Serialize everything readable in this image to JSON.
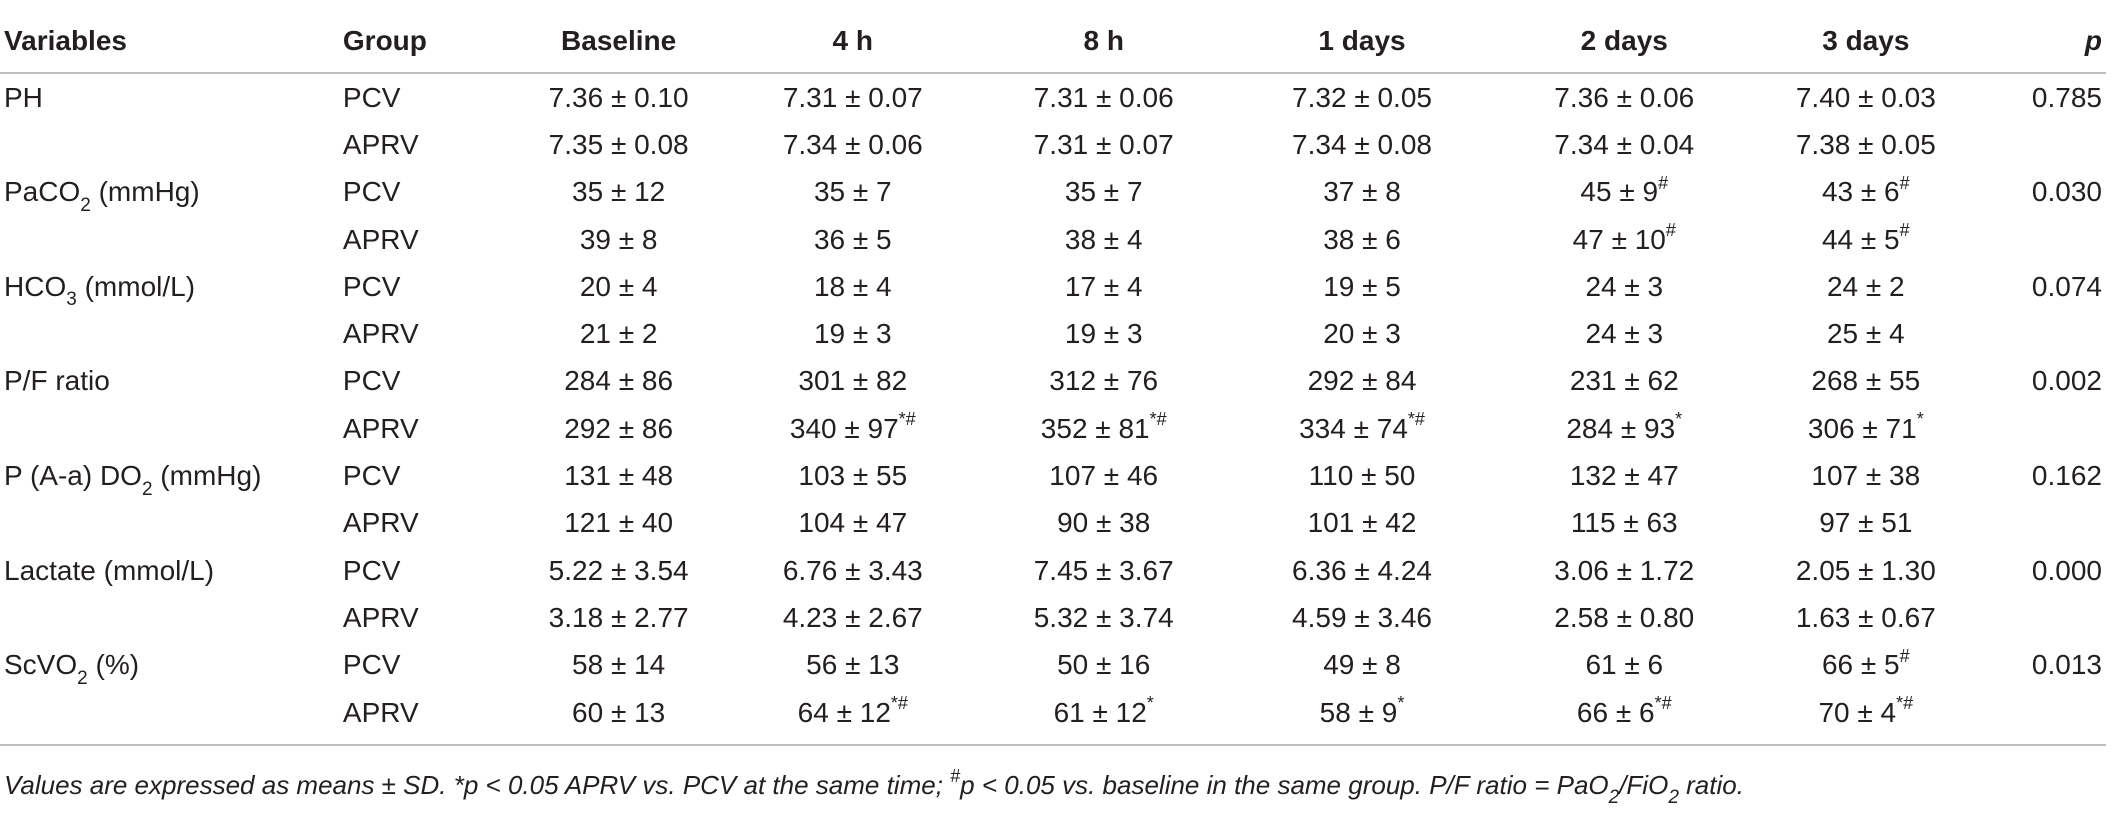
{
  "table": {
    "headers": [
      "Variables",
      "Group",
      "Baseline",
      "4 h",
      "8 h",
      "1 days",
      "2 days",
      "3 days",
      "p"
    ],
    "rows": [
      {
        "variable": "PH",
        "group": "PCV",
        "values": [
          [
            "7.36 ± 0.10",
            ""
          ],
          [
            "7.31 ± 0.07",
            ""
          ],
          [
            "7.31 ± 0.06",
            ""
          ],
          [
            "7.32 ± 0.05",
            ""
          ],
          [
            "7.36 ± 0.06",
            ""
          ],
          [
            "7.40 ± 0.03",
            ""
          ]
        ],
        "p": "0.785"
      },
      {
        "variable": "",
        "group": "APRV",
        "values": [
          [
            "7.35 ± 0.08",
            ""
          ],
          [
            "7.34 ± 0.06",
            ""
          ],
          [
            "7.31 ± 0.07",
            ""
          ],
          [
            "7.34 ± 0.08",
            ""
          ],
          [
            "7.34 ± 0.04",
            ""
          ],
          [
            "7.38 ± 0.05",
            ""
          ]
        ],
        "p": ""
      },
      {
        "variable": "PaCO",
        "variable_sub": "2",
        "variable_suffix": " (mmHg)",
        "group": "PCV",
        "values": [
          [
            "35 ± 12",
            ""
          ],
          [
            "35 ± 7",
            ""
          ],
          [
            "35 ± 7",
            ""
          ],
          [
            "37 ± 8",
            ""
          ],
          [
            "45 ± 9",
            "#"
          ],
          [
            "43 ± 6",
            "#"
          ]
        ],
        "p": "0.030"
      },
      {
        "variable": "",
        "group": "APRV",
        "values": [
          [
            "39 ± 8",
            ""
          ],
          [
            "36 ± 5",
            ""
          ],
          [
            "38 ± 4",
            ""
          ],
          [
            "38 ± 6",
            ""
          ],
          [
            "47 ± 10",
            "#"
          ],
          [
            "44 ± 5",
            "#"
          ]
        ],
        "p": ""
      },
      {
        "variable": "HCO",
        "variable_sub": "3",
        "variable_suffix": " (mmol/L)",
        "group": "PCV",
        "values": [
          [
            "20 ± 4",
            ""
          ],
          [
            "18 ± 4",
            ""
          ],
          [
            "17 ± 4",
            ""
          ],
          [
            "19 ± 5",
            ""
          ],
          [
            "24 ± 3",
            ""
          ],
          [
            "24 ± 2",
            ""
          ]
        ],
        "p": "0.074"
      },
      {
        "variable": "",
        "group": "APRV",
        "values": [
          [
            "21 ± 2",
            ""
          ],
          [
            "19 ± 3",
            ""
          ],
          [
            "19 ± 3",
            ""
          ],
          [
            "20 ± 3",
            ""
          ],
          [
            "24 ± 3",
            ""
          ],
          [
            "25 ± 4",
            ""
          ]
        ],
        "p": ""
      },
      {
        "variable": "P/F ratio",
        "group": "PCV",
        "values": [
          [
            "284 ± 86",
            ""
          ],
          [
            "301 ± 82",
            ""
          ],
          [
            "312 ± 76",
            ""
          ],
          [
            "292 ± 84",
            ""
          ],
          [
            "231 ± 62",
            ""
          ],
          [
            "268 ± 55",
            ""
          ]
        ],
        "p": "0.002"
      },
      {
        "variable": "",
        "group": "APRV",
        "values": [
          [
            "292 ± 86",
            ""
          ],
          [
            "340 ± 97",
            "*#"
          ],
          [
            "352 ± 81",
            "*#"
          ],
          [
            "334 ± 74",
            "*#"
          ],
          [
            "284 ± 93",
            "*"
          ],
          [
            "306 ± 71",
            "*"
          ]
        ],
        "p": ""
      },
      {
        "variable": "P (A-a) DO",
        "variable_sub": "2",
        "variable_suffix": " (mmHg)",
        "group": "PCV",
        "values": [
          [
            "131 ± 48",
            ""
          ],
          [
            "103 ± 55",
            ""
          ],
          [
            "107 ± 46",
            ""
          ],
          [
            "110 ± 50",
            ""
          ],
          [
            "132 ± 47",
            ""
          ],
          [
            "107 ± 38",
            ""
          ]
        ],
        "p": "0.162"
      },
      {
        "variable": "",
        "group": "APRV",
        "values": [
          [
            "121 ± 40",
            ""
          ],
          [
            "104 ± 47",
            ""
          ],
          [
            "90 ± 38",
            ""
          ],
          [
            "101 ± 42",
            ""
          ],
          [
            "115 ± 63",
            ""
          ],
          [
            "97 ± 51",
            ""
          ]
        ],
        "p": ""
      },
      {
        "variable": "Lactate (mmol/L)",
        "group": "PCV",
        "values": [
          [
            "5.22 ± 3.54",
            ""
          ],
          [
            "6.76 ± 3.43",
            ""
          ],
          [
            "7.45 ± 3.67",
            ""
          ],
          [
            "6.36 ± 4.24",
            ""
          ],
          [
            "3.06 ± 1.72",
            ""
          ],
          [
            "2.05 ± 1.30",
            ""
          ]
        ],
        "p": "0.000"
      },
      {
        "variable": "",
        "group": "APRV",
        "values": [
          [
            "3.18 ± 2.77",
            ""
          ],
          [
            "4.23 ± 2.67",
            ""
          ],
          [
            "5.32 ± 3.74",
            ""
          ],
          [
            "4.59 ± 3.46",
            ""
          ],
          [
            "2.58 ± 0.80",
            ""
          ],
          [
            "1.63 ± 0.67",
            ""
          ]
        ],
        "p": ""
      },
      {
        "variable": "ScVO",
        "variable_sub": "2",
        "variable_suffix": " (%)",
        "group": "PCV",
        "values": [
          [
            "58 ± 14",
            ""
          ],
          [
            "56 ± 13",
            ""
          ],
          [
            "50 ± 16",
            ""
          ],
          [
            "49 ± 8",
            ""
          ],
          [
            "61 ± 6",
            ""
          ],
          [
            "66 ± 5",
            "#"
          ]
        ],
        "p": "0.013"
      },
      {
        "variable": "",
        "group": "APRV",
        "values": [
          [
            "60 ± 13",
            ""
          ],
          [
            "64 ± 12",
            "*#"
          ],
          [
            "61 ± 12",
            "*"
          ],
          [
            "58 ± 9",
            "*"
          ],
          [
            "66 ± 6",
            "*#"
          ],
          [
            "70 ± 4",
            "*#"
          ]
        ],
        "p": ""
      }
    ]
  },
  "footnote": {
    "part1": "Values are expressed as means ± SD. *p < 0.05 APRV vs. PCV at the same time; ",
    "sup1": "#",
    "part2": "p < 0.05 vs. baseline in the same group. P/F ratio = PaO",
    "sub1": "2",
    "part3": "/FiO",
    "sub2": "2",
    "part4": " ratio."
  }
}
